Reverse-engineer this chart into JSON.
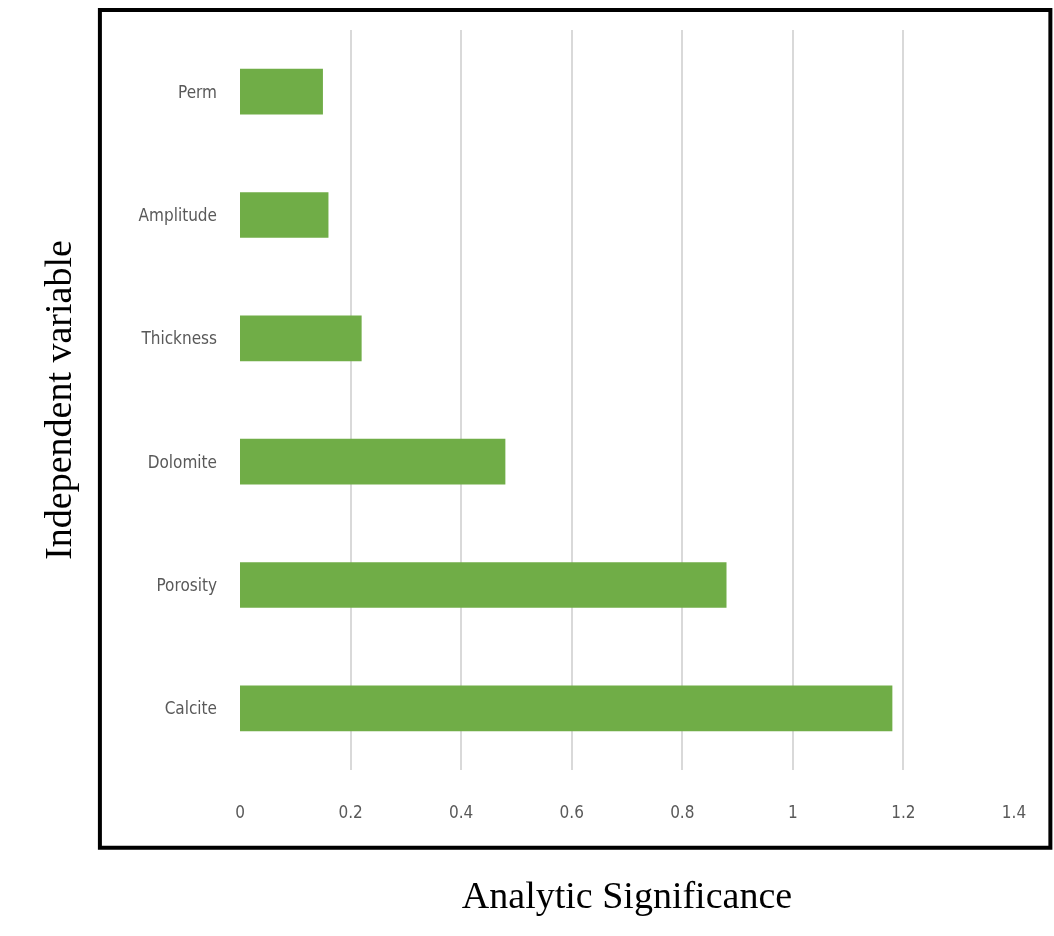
{
  "chart_data": {
    "type": "bar",
    "orientation": "horizontal",
    "xlabel": "Analytic Significance",
    "ylabel": "Independent variable",
    "categories": [
      "Perm",
      "Amplitude",
      "Thickness",
      "Dolomite",
      "Porosity",
      "Calcite"
    ],
    "values": [
      0.15,
      0.16,
      0.22,
      0.48,
      0.88,
      1.18
    ],
    "color": "#70ad47",
    "xlim": [
      0,
      1.4
    ],
    "xticks": [
      0,
      0.2,
      0.4,
      0.6,
      0.8,
      1,
      1.2,
      1.4
    ],
    "grid": "x"
  }
}
